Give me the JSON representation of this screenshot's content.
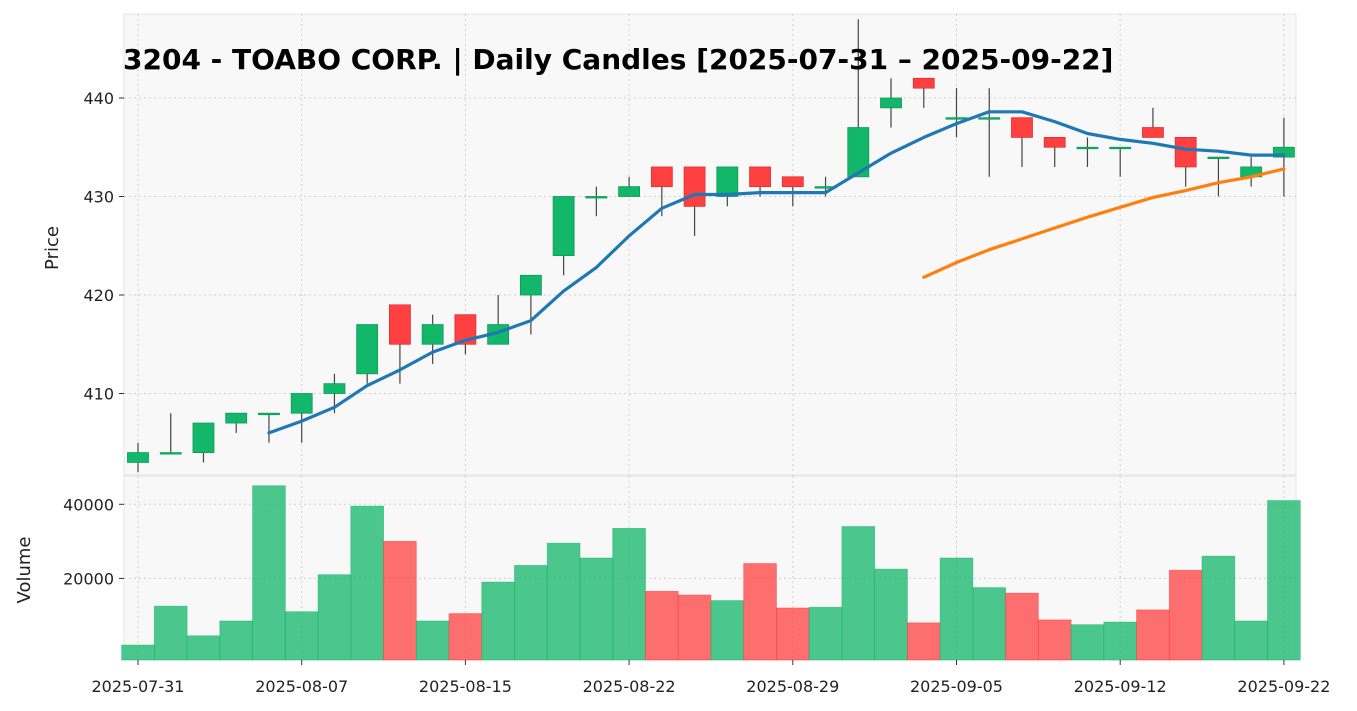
{
  "chart_data": {
    "type": "candlestick",
    "title": "3204 - TOABO CORP. | Daily Candles [2025-07-31 – 2025-09-22]",
    "price_panel": {
      "ylabel": "Price",
      "ylim": [
        403,
        448
      ],
      "yticks": [
        410,
        420,
        430,
        440
      ]
    },
    "volume_panel": {
      "ylabel": "Volume",
      "ylim": [
        0,
        45000
      ],
      "yticks": [
        20000,
        40000
      ]
    },
    "xticks": [
      "2025-07-31",
      "2025-08-07",
      "2025-08-15",
      "2025-08-22",
      "2025-08-29",
      "2025-09-05",
      "2025-09-12",
      "2025-09-22"
    ],
    "xtick_positions": [
      0,
      5,
      10,
      15,
      20,
      25,
      30,
      35
    ],
    "grid": true,
    "colors": {
      "up": "#12b76a",
      "down": "#ff4040",
      "ma_short": "#1f77b4",
      "ma_long": "#ff7f0e",
      "background": "#f8f8f8"
    },
    "candles": [
      {
        "date": "2025-07-31",
        "open": 403,
        "high": 405,
        "low": 402,
        "close": 404,
        "volume": 2000
      },
      {
        "date": "2025-08-01",
        "open": 404,
        "high": 408,
        "low": 404,
        "close": 404,
        "volume": 12500
      },
      {
        "date": "2025-08-04",
        "open": 404,
        "high": 407,
        "low": 403,
        "close": 407,
        "volume": 4500
      },
      {
        "date": "2025-08-05",
        "open": 407,
        "high": 408,
        "low": 406,
        "close": 408,
        "volume": 8500
      },
      {
        "date": "2025-08-06",
        "open": 408,
        "high": 408,
        "low": 405,
        "close": 408,
        "volume": 45000
      },
      {
        "date": "2025-08-07",
        "open": 408,
        "high": 410,
        "low": 405,
        "close": 410,
        "volume": 11000
      },
      {
        "date": "2025-08-08",
        "open": 410,
        "high": 412,
        "low": 408,
        "close": 411,
        "volume": 21000
      },
      {
        "date": "2025-08-12",
        "open": 412,
        "high": 417,
        "low": 411,
        "close": 417,
        "volume": 39500
      },
      {
        "date": "2025-08-13",
        "open": 419,
        "high": 419,
        "low": 411,
        "close": 415,
        "volume": 30000
      },
      {
        "date": "2025-08-14",
        "open": 415,
        "high": 418,
        "low": 413,
        "close": 417,
        "volume": 8500
      },
      {
        "date": "2025-08-15",
        "open": 418,
        "high": 418,
        "low": 414,
        "close": 415,
        "volume": 10500
      },
      {
        "date": "2025-08-18",
        "open": 415,
        "high": 420,
        "low": 415,
        "close": 417,
        "volume": 19000
      },
      {
        "date": "2025-08-19",
        "open": 420,
        "high": 422,
        "low": 416,
        "close": 422,
        "volume": 23500
      },
      {
        "date": "2025-08-20",
        "open": 424,
        "high": 430,
        "low": 422,
        "close": 430,
        "volume": 29500
      },
      {
        "date": "2025-08-21",
        "open": 430,
        "high": 431,
        "low": 428,
        "close": 430,
        "volume": 25500
      },
      {
        "date": "2025-08-22",
        "open": 430,
        "high": 432,
        "low": 430,
        "close": 431,
        "volume": 33500
      },
      {
        "date": "2025-08-25",
        "open": 433,
        "high": 433,
        "low": 428,
        "close": 431,
        "volume": 16500
      },
      {
        "date": "2025-08-26",
        "open": 433,
        "high": 433,
        "low": 426,
        "close": 429,
        "volume": 15500
      },
      {
        "date": "2025-08-27",
        "open": 430,
        "high": 433,
        "low": 429,
        "close": 433,
        "volume": 14000
      },
      {
        "date": "2025-08-28",
        "open": 433,
        "high": 433,
        "low": 430,
        "close": 431,
        "volume": 24000
      },
      {
        "date": "2025-08-29",
        "open": 432,
        "high": 432,
        "low": 429,
        "close": 431,
        "volume": 12000
      },
      {
        "date": "2025-09-01",
        "open": 431,
        "high": 432,
        "low": 430,
        "close": 431,
        "volume": 12200
      },
      {
        "date": "2025-09-02",
        "open": 432,
        "high": 448,
        "low": 432,
        "close": 437,
        "volume": 34000
      },
      {
        "date": "2025-09-03",
        "open": 439,
        "high": 442,
        "low": 437,
        "close": 440,
        "volume": 22500
      },
      {
        "date": "2025-09-04",
        "open": 442,
        "high": 442,
        "low": 439,
        "close": 441,
        "volume": 8000
      },
      {
        "date": "2025-09-05",
        "open": 438,
        "high": 441,
        "low": 436,
        "close": 438,
        "volume": 25500
      },
      {
        "date": "2025-09-08",
        "open": 438,
        "high": 441,
        "low": 432,
        "close": 438,
        "volume": 17500
      },
      {
        "date": "2025-09-09",
        "open": 438,
        "high": 438,
        "low": 433,
        "close": 436,
        "volume": 16000
      },
      {
        "date": "2025-09-10",
        "open": 436,
        "high": 436,
        "low": 433,
        "close": 435,
        "volume": 8800
      },
      {
        "date": "2025-09-11",
        "open": 435,
        "high": 436,
        "low": 433,
        "close": 435,
        "volume": 7500
      },
      {
        "date": "2025-09-12",
        "open": 435,
        "high": 435,
        "low": 432,
        "close": 435,
        "volume": 8200
      },
      {
        "date": "2025-09-16",
        "open": 437,
        "high": 439,
        "low": 436,
        "close": 436,
        "volume": 11500
      },
      {
        "date": "2025-09-17",
        "open": 436,
        "high": 436,
        "low": 431,
        "close": 433,
        "volume": 22200
      },
      {
        "date": "2025-09-18",
        "open": 434,
        "high": 434,
        "low": 430,
        "close": 434,
        "volume": 26000
      },
      {
        "date": "2025-09-19",
        "open": 432,
        "high": 434,
        "low": 431,
        "close": 433,
        "volume": 8500
      },
      {
        "date": "2025-09-22",
        "open": 434,
        "high": 438,
        "low": 430,
        "close": 435,
        "volume": 41000
      }
    ],
    "series": [
      {
        "type": "line",
        "color": "#1f77b4",
        "start_index": 4,
        "values": [
          406,
          407.2,
          408.6,
          410.8,
          412.4,
          414.2,
          415.4,
          416.2,
          417.4,
          420.4,
          422.8,
          426,
          428.8,
          430.2,
          430.2,
          430.4,
          430.4,
          430.4,
          432.4,
          434.4,
          436,
          437.4,
          438.6,
          438.6,
          437.6,
          436.4,
          435.8,
          435.4,
          434.8,
          434.6,
          434.2,
          434.2
        ]
      },
      {
        "type": "line",
        "color": "#ff7f0e",
        "start_index": 24,
        "values": [
          421.8,
          423.3,
          424.6,
          425.7,
          426.8,
          427.9,
          428.9,
          429.9,
          430.6,
          431.4,
          432.0,
          432.8
        ]
      }
    ]
  }
}
